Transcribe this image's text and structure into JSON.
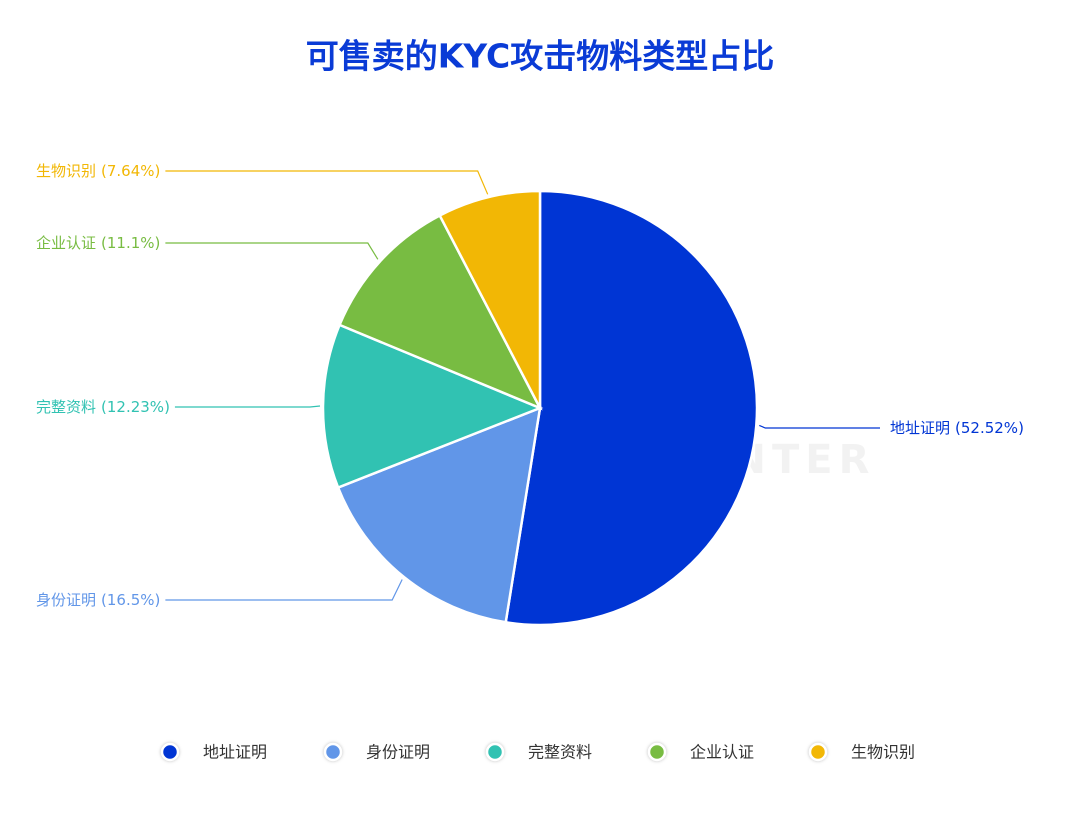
{
  "chart_data": {
    "type": "pie",
    "title": "可售卖的KYC攻击物料类型占比",
    "watermark": "THREAT HUNTER",
    "categories": [
      "地址证明",
      "身份证明",
      "完整资料",
      "企业认证",
      "生物识别"
    ],
    "values": [
      52.52,
      16.5,
      12.23,
      11.1,
      7.64
    ],
    "value_labels": [
      "(52.52%)",
      "(16.5%)",
      "(12.23%)",
      "(11.1%)",
      "(7.64%)"
    ],
    "colors": [
      "#0035d4",
      "#6196e8",
      "#31c2b2",
      "#78bc42",
      "#f2b705"
    ],
    "legend": "bottom"
  }
}
